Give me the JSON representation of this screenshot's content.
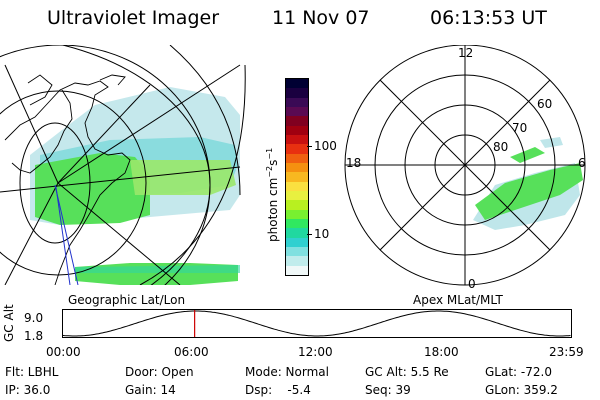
{
  "header": {
    "instrument": "Ultraviolet Imager",
    "date": "11 Nov 07",
    "time": "06:13:53 UT"
  },
  "colorbar": {
    "label_main": "photon cm",
    "label_sup1": "−2",
    "label_mid": "s",
    "label_sup2": "−1",
    "tick_100": "100",
    "tick_10": "10",
    "colors": [
      "#000033",
      "#1a0040",
      "#3a0a55",
      "#5a0a52",
      "#800020",
      "#a00010",
      "#c81010",
      "#e83010",
      "#f06010",
      "#f59010",
      "#f8b820",
      "#fae040",
      "#e8f040",
      "#b8f020",
      "#78f030",
      "#30e860",
      "#20d8a0",
      "#30d0d0",
      "#80e0e0",
      "#c0ecec",
      "#f0f8f8"
    ]
  },
  "geographic_panel": {
    "caption": "Geographic Lat/Lon"
  },
  "polar_panel": {
    "caption": "Apex MLat/MLT",
    "mlt_top": "12",
    "mlt_left": "18",
    "mlt_right": "6",
    "mlt_bottom": "0",
    "lat_labels": [
      "60",
      "70",
      "80"
    ]
  },
  "orbit_plot": {
    "ylabel": "GC Alt",
    "ymax": "9.0",
    "ymin": "1.8",
    "x_ticks": [
      "00:00",
      "06:00",
      "12:00",
      "18:00",
      "23:59"
    ],
    "current_time_marker_hours": 6.23,
    "marker_color": "#cc0000"
  },
  "status": {
    "flt": "Flt: LBHL",
    "ip": "IP: 36.0",
    "door": "Door: Open",
    "gain": "Gain: 14",
    "mode": "Mode: Normal",
    "dsp": "Dsp:    -5.4",
    "gc_alt": "GC Alt: 5.5 Re",
    "seq": "Seq: 39",
    "glat": "GLat: -72.0",
    "glon": "GLon: 359.2"
  }
}
